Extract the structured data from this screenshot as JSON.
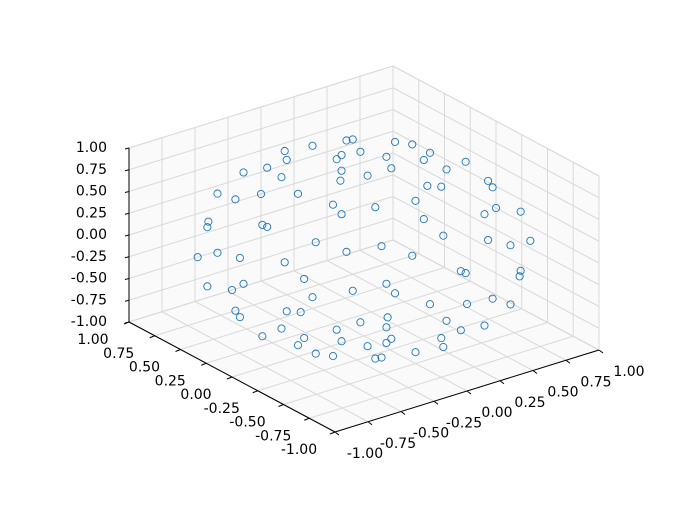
{
  "chart_data": {
    "type": "scatter3d",
    "xticks": [
      {
        "value": -1,
        "label": "-1.00"
      },
      {
        "value": -0.75,
        "label": "-0.75"
      },
      {
        "value": -0.5,
        "label": "-0.50"
      },
      {
        "value": -0.25,
        "label": "-0.25"
      },
      {
        "value": 0,
        "label": "0.00"
      },
      {
        "value": 0.25,
        "label": "0.25"
      },
      {
        "value": 0.5,
        "label": "0.50"
      },
      {
        "value": 0.75,
        "label": "0.75"
      },
      {
        "value": 1,
        "label": "1.00"
      }
    ],
    "yticks": [
      {
        "value": -1,
        "label": "-1.00"
      },
      {
        "value": -0.75,
        "label": "-0.75"
      },
      {
        "value": -0.5,
        "label": "-0.50"
      },
      {
        "value": -0.25,
        "label": "-0.25"
      },
      {
        "value": 0,
        "label": "0.00"
      },
      {
        "value": 0.25,
        "label": "0.25"
      },
      {
        "value": 0.5,
        "label": "0.50"
      },
      {
        "value": 0.75,
        "label": "0.75"
      },
      {
        "value": 1,
        "label": "1.00"
      }
    ],
    "zticks": [
      {
        "value": -1,
        "label": "-1.00"
      },
      {
        "value": -0.75,
        "label": "-0.75"
      },
      {
        "value": -0.5,
        "label": "-0.50"
      },
      {
        "value": -0.25,
        "label": "-0.25"
      },
      {
        "value": 0,
        "label": "0.00"
      },
      {
        "value": 0.25,
        "label": "0.25"
      },
      {
        "value": 0.5,
        "label": "0.50"
      },
      {
        "value": 0.75,
        "label": "0.75"
      },
      {
        "value": 1,
        "label": "1.00"
      }
    ],
    "xlim": [
      -1,
      1
    ],
    "ylim": [
      -1,
      1
    ],
    "zlim": [
      -1,
      1
    ],
    "grid": true,
    "series": [
      {
        "color": "#1f77b4",
        "x": [
          0.17,
          0.09,
          -0.09,
          -0.17,
          -0.09,
          0.09,
          0.5,
          0.43,
          0.25,
          0,
          -0.25,
          -0.43,
          -0.5,
          -0.43,
          -0.25,
          0,
          0.25,
          0.43,
          0.77,
          0.67,
          0.39,
          0,
          -0.39,
          -0.67,
          -0.77,
          -0.67,
          -0.39,
          0,
          0.39,
          0.67,
          0.94,
          0.82,
          0.47,
          0,
          -0.47,
          -0.82,
          -0.94,
          -0.82,
          -0.47,
          0,
          0.47,
          0.82,
          1,
          0.87,
          0.5,
          0,
          -0.5,
          -0.87,
          -1,
          -0.87,
          -0.5,
          0,
          0.5,
          0.87,
          0.94,
          0.82,
          0.47,
          0,
          -0.47,
          -0.82,
          -0.94,
          -0.82,
          -0.47,
          0,
          0.47,
          0.82,
          0.77,
          0.67,
          0.39,
          0,
          -0.39,
          -0.67,
          -0.77,
          -0.67,
          -0.39,
          0,
          0.39,
          0.67,
          0.5,
          0.43,
          0.25,
          0,
          -0.25,
          -0.43,
          -0.5,
          -0.43,
          -0.25,
          0,
          0.25,
          0.43,
          0.17,
          0.09,
          -0.09,
          -0.17,
          -0.09,
          0.09
        ],
        "y": [
          0,
          0.15,
          0.15,
          0,
          -0.15,
          -0.15,
          0,
          0.25,
          0.43,
          0.5,
          0.43,
          0.25,
          0,
          -0.25,
          -0.43,
          -0.5,
          -0.43,
          -0.25,
          0,
          0.39,
          0.67,
          0.77,
          0.67,
          0.39,
          0,
          -0.39,
          -0.67,
          -0.77,
          -0.67,
          -0.39,
          0,
          0.47,
          0.82,
          0.94,
          0.82,
          0.47,
          0,
          -0.47,
          -0.82,
          -0.94,
          -0.82,
          -0.47,
          0,
          0.5,
          0.87,
          1,
          0.87,
          0.5,
          0,
          -0.5,
          -0.87,
          -1,
          -0.87,
          -0.5,
          0,
          0.47,
          0.82,
          0.94,
          0.82,
          0.47,
          0,
          -0.47,
          -0.82,
          -0.94,
          -0.82,
          -0.47,
          0,
          0.39,
          0.67,
          0.77,
          0.67,
          0.39,
          0,
          -0.39,
          -0.67,
          -0.77,
          -0.67,
          -0.39,
          0,
          0.25,
          0.43,
          0.5,
          0.43,
          0.25,
          0,
          -0.25,
          -0.43,
          -0.5,
          -0.43,
          -0.25,
          0,
          0.15,
          0.15,
          0,
          -0.15,
          -0.15
        ],
        "z": [
          -0.98,
          -0.98,
          -0.98,
          -0.98,
          -0.98,
          -0.98,
          -0.87,
          -0.87,
          -0.87,
          -0.87,
          -0.87,
          -0.87,
          -0.87,
          -0.87,
          -0.87,
          -0.87,
          -0.87,
          -0.87,
          -0.64,
          -0.64,
          -0.64,
          -0.64,
          -0.64,
          -0.64,
          -0.64,
          -0.64,
          -0.64,
          -0.64,
          -0.64,
          -0.64,
          -0.34,
          -0.34,
          -0.34,
          -0.34,
          -0.34,
          -0.34,
          -0.34,
          -0.34,
          -0.34,
          -0.34,
          -0.34,
          -0.34,
          0,
          0,
          0,
          0,
          0,
          0,
          0,
          0,
          0,
          0,
          0,
          0,
          0.34,
          0.34,
          0.34,
          0.34,
          0.34,
          0.34,
          0.34,
          0.34,
          0.34,
          0.34,
          0.34,
          0.34,
          0.64,
          0.64,
          0.64,
          0.64,
          0.64,
          0.64,
          0.64,
          0.64,
          0.64,
          0.64,
          0.64,
          0.64,
          0.87,
          0.87,
          0.87,
          0.87,
          0.87,
          0.87,
          0.87,
          0.87,
          0.87,
          0.87,
          0.87,
          0.87,
          0.98,
          0.98,
          0.98,
          0.98,
          0.98,
          0.98
        ]
      }
    ]
  }
}
